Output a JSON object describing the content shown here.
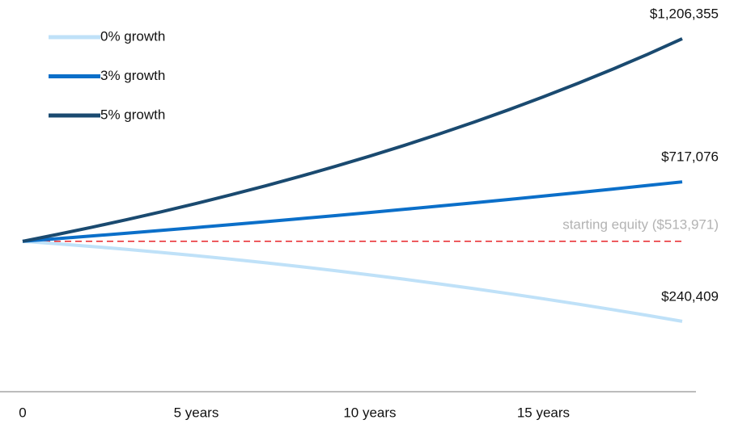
{
  "chart_data": {
    "type": "line",
    "x": [
      0,
      1,
      2,
      3,
      4,
      5,
      6,
      7,
      8,
      9,
      10,
      11,
      12,
      13,
      14,
      15,
      16,
      17,
      18,
      19
    ],
    "xlim": [
      0,
      19
    ],
    "xticks": [
      {
        "value": 0,
        "label": "0"
      },
      {
        "value": 5,
        "label": "5 years"
      },
      {
        "value": 10,
        "label": "10 years"
      },
      {
        "value": 15,
        "label": "15 years"
      }
    ],
    "ylim": [
      0,
      1300000
    ],
    "legend": "top-left",
    "series": [
      {
        "name": "0% growth",
        "color": "#bfe1f8",
        "values": [
          513971,
          505429,
          496237,
          486395,
          475903,
          464761,
          452969,
          440527,
          427435,
          413693,
          399301,
          384259,
          368567,
          352225,
          335233,
          317591,
          299299,
          280357,
          260765,
          240409
        ],
        "value_labels": [
          null,
          null,
          null,
          null,
          null,
          null,
          null,
          null,
          null,
          null,
          null,
          null,
          null,
          null,
          null,
          null,
          null,
          null,
          null,
          "$240,409"
        ]
      },
      {
        "name": "3% growth",
        "color": "#0b6fc9",
        "values": [
          513971,
          523063,
          532315,
          541731,
          551314,
          561065,
          570990,
          581091,
          591370,
          601832,
          612477,
          623311,
          634338,
          645559,
          656979,
          668600,
          680427,
          692463,
          704717,
          717076
        ],
        "value_labels": [
          null,
          null,
          null,
          null,
          null,
          null,
          null,
          null,
          null,
          null,
          null,
          null,
          null,
          null,
          null,
          null,
          null,
          null,
          null,
          "$717,076"
        ]
      },
      {
        "name": "5% growth",
        "color": "#1a4a70",
        "values": [
          513971,
          537565,
          562240,
          588050,
          615045,
          643277,
          672807,
          703692,
          735994,
          769779,
          805115,
          842073,
          880727,
          921157,
          963442,
          1007668,
          1053924,
          1102304,
          1152904,
          1206355
        ],
        "value_labels": [
          null,
          null,
          null,
          null,
          null,
          null,
          null,
          null,
          null,
          null,
          null,
          null,
          null,
          null,
          null,
          null,
          null,
          null,
          null,
          "$1,206,355"
        ]
      }
    ],
    "reference": {
      "label": "starting equity ($513,971)",
      "value": 513971,
      "color": "#e8262a"
    }
  }
}
